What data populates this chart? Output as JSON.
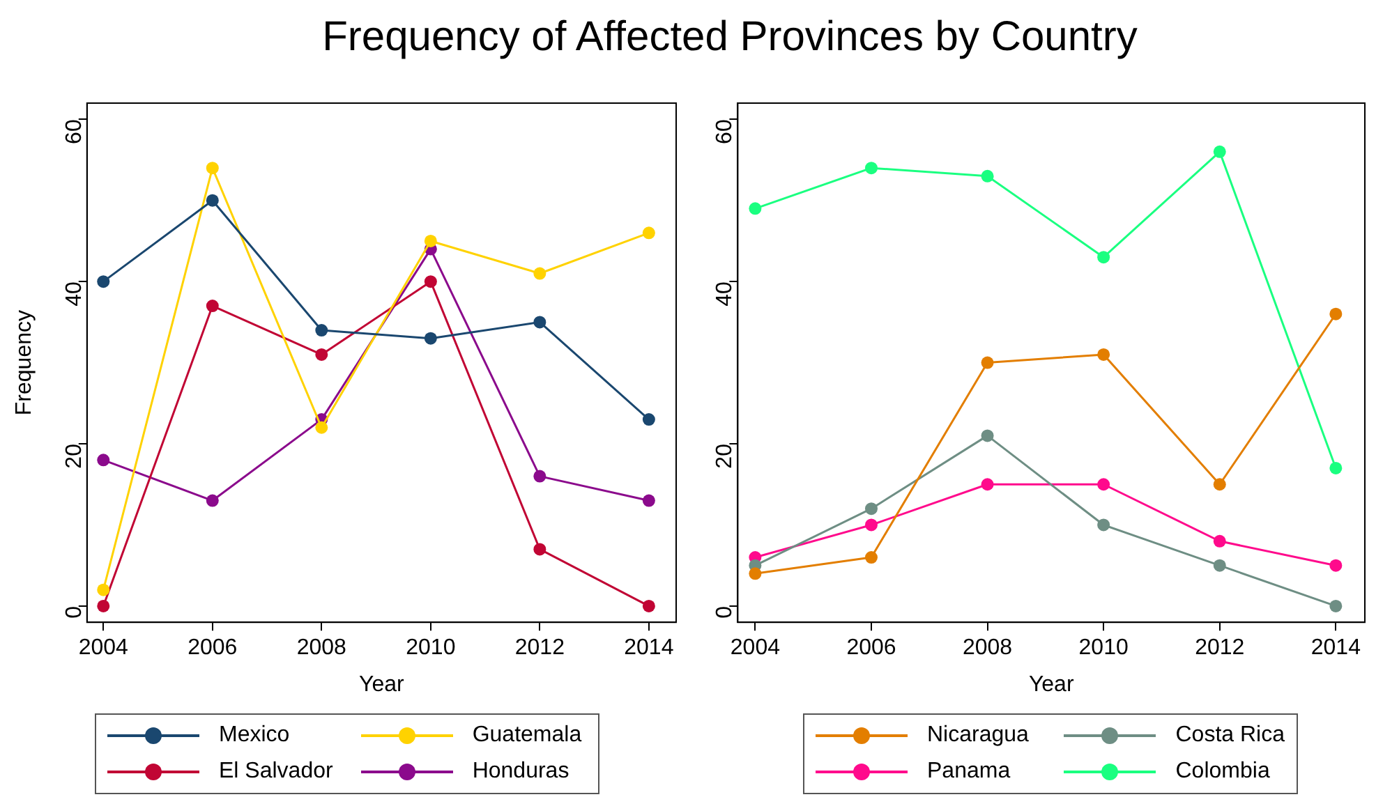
{
  "chart_data": [
    {
      "type": "line",
      "title": "Frequency of Affected Provinces by Country",
      "xlabel": "Year",
      "ylabel": "Frequency",
      "x": [
        2004,
        2006,
        2008,
        2010,
        2012,
        2014
      ],
      "xlim": [
        2003.7,
        2014.5
      ],
      "xticks": [
        2004,
        2006,
        2008,
        2010,
        2012,
        2014
      ],
      "ylim": [
        -2,
        62
      ],
      "yticks": [
        0,
        20,
        40,
        60
      ],
      "grid": false,
      "legend": "bottom",
      "marker": "circle",
      "line_style": "solid",
      "series": [
        {
          "name": "Mexico",
          "color": "#1a476f",
          "values": [
            40,
            50,
            34,
            33,
            35,
            23
          ]
        },
        {
          "name": "Guatemala",
          "color": "#ffd200",
          "values": [
            2,
            54,
            22,
            45,
            41,
            46
          ]
        },
        {
          "name": "El Salvador",
          "color": "#c10534",
          "values": [
            0,
            37,
            31,
            40,
            7,
            0
          ]
        },
        {
          "name": "Honduras",
          "color": "#8b0a8c",
          "values": [
            18,
            13,
            23,
            44,
            16,
            13
          ]
        }
      ]
    },
    {
      "type": "line",
      "xlabel": "Year",
      "x": [
        2004,
        2006,
        2008,
        2010,
        2012,
        2014
      ],
      "xlim": [
        2003.7,
        2014.5
      ],
      "xticks": [
        2004,
        2006,
        2008,
        2010,
        2012,
        2014
      ],
      "ylim": [
        -2,
        62
      ],
      "yticks": [
        0,
        20,
        40,
        60
      ],
      "grid": false,
      "legend": "bottom",
      "marker": "circle",
      "line_style": "solid",
      "series": [
        {
          "name": "Nicaragua",
          "color": "#e37e00",
          "values": [
            4,
            6,
            30,
            31,
            15,
            36
          ]
        },
        {
          "name": "Costa Rica",
          "color": "#6e8e84",
          "values": [
            5,
            12,
            21,
            10,
            5,
            0
          ]
        },
        {
          "name": "Panama",
          "color": "#ff0a8c",
          "values": [
            6,
            10,
            15,
            15,
            8,
            5
          ]
        },
        {
          "name": "Colombia",
          "color": "#1aff80",
          "values": [
            49,
            54,
            53,
            43,
            56,
            17
          ]
        }
      ]
    }
  ]
}
